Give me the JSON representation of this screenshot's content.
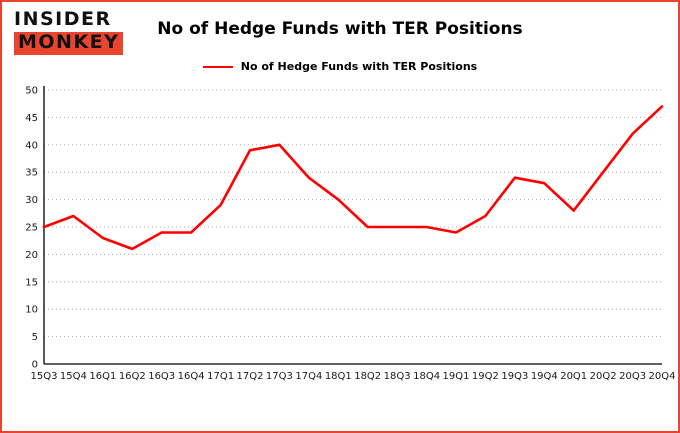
{
  "logo": {
    "line1": "INSIDER",
    "line2": "MONKEY"
  },
  "chart_data": {
    "type": "line",
    "title": "No of Hedge Funds with TER Positions",
    "legend": "No of Hedge Funds with TER Positions",
    "legend_position": "top",
    "categories": [
      "15Q3",
      "15Q4",
      "16Q1",
      "16Q2",
      "16Q3",
      "16Q4",
      "17Q1",
      "17Q2",
      "17Q3",
      "17Q4",
      "18Q1",
      "18Q2",
      "18Q3",
      "18Q4",
      "19Q1",
      "19Q2",
      "19Q3",
      "19Q4",
      "20Q1",
      "20Q2",
      "20Q3",
      "20Q4"
    ],
    "values": [
      25,
      27,
      23,
      21,
      24,
      24,
      29,
      39,
      40,
      34,
      30,
      25,
      25,
      25,
      24,
      27,
      34,
      33,
      28,
      35,
      42,
      47
    ],
    "xlabel": "",
    "ylabel": "",
    "ylim": [
      0,
      50
    ],
    "ytick": 5,
    "grid": true,
    "colors": {
      "line": "#ff0000",
      "frame_border": "#e8442e",
      "gridline": "#aaaaaa",
      "axis": "#000000"
    }
  }
}
